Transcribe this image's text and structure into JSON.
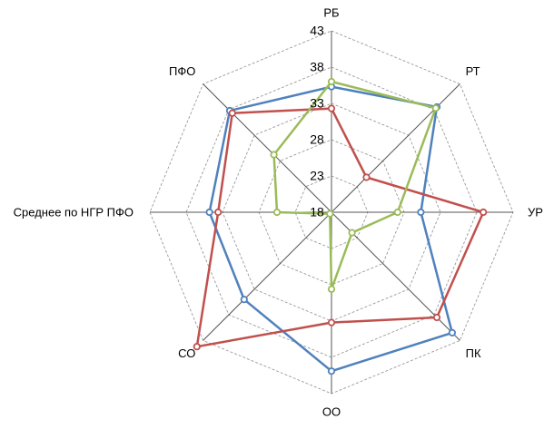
{
  "chart_data": {
    "type": "radar",
    "categories": [
      "РБ",
      "РТ",
      "УР",
      "ПК",
      "ОО",
      "СО",
      "Среднее по НГР ПФО",
      "ПФО"
    ],
    "r_ticks": [
      18,
      23,
      28,
      33,
      38,
      43
    ],
    "rlim": [
      18,
      43
    ],
    "grid": true,
    "legend": "none",
    "series": [
      {
        "color": "#4F81BD",
        "values": [
          35.3,
          38.5,
          30.3,
          41.5,
          39.9,
          35.0,
          34.8,
          37.8
        ]
      },
      {
        "color": "#C0504D",
        "values": [
          32.3,
          24.8,
          38.9,
          38.5,
          33.2,
          44.2,
          33.6,
          37.3
        ]
      },
      {
        "color": "#9BBB59",
        "values": [
          36.0,
          38.3,
          27.1,
          22.0,
          28.6,
          18.3,
          25.5,
          29.2
        ]
      }
    ]
  }
}
